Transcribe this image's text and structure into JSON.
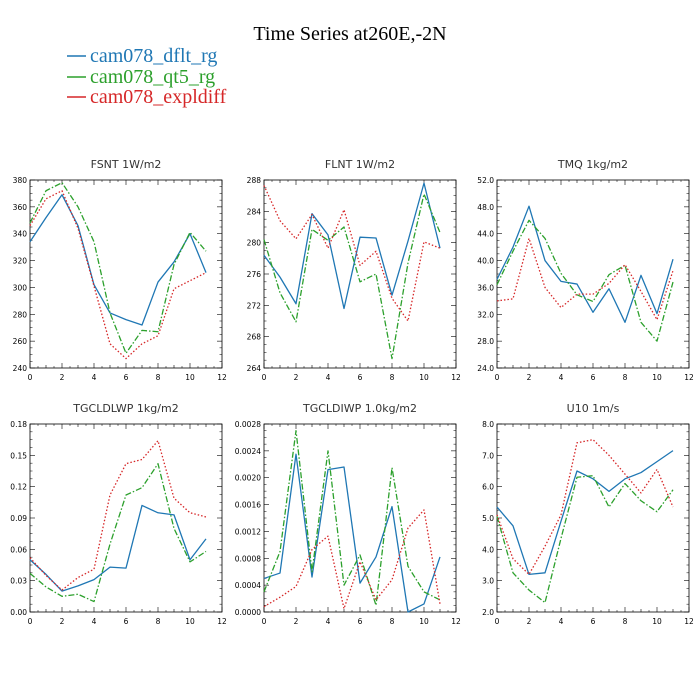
{
  "title": "Time Series at260E,-2N",
  "legend": [
    {
      "label": "cam078_dflt_rg",
      "color": "#1f77b4",
      "dash": "solid"
    },
    {
      "label": "cam078_qt5_rg",
      "color": "#2ca02c",
      "dash": "dashdot"
    },
    {
      "label": "cam078_expldiff",
      "color": "#d62728",
      "dash": "dot"
    }
  ],
  "chart_data": [
    {
      "type": "line",
      "title": "FSNT   1W/m2",
      "x": [
        0,
        1,
        2,
        3,
        4,
        5,
        6,
        7,
        8,
        9,
        10,
        11
      ],
      "xlim": [
        0,
        12
      ],
      "xticks": [
        0,
        2,
        4,
        6,
        8,
        10,
        12
      ],
      "ylim": [
        240,
        380
      ],
      "yticks": [
        "240",
        "260",
        "280",
        "300",
        "320",
        "340",
        "360",
        "380"
      ],
      "series": [
        {
          "name": "cam078_dflt_rg",
          "values": [
            334,
            352,
            369,
            346,
            302,
            281,
            276,
            272,
            304,
            319,
            340,
            311
          ]
        },
        {
          "name": "cam078_qt5_rg",
          "values": [
            348,
            372,
            378,
            360,
            334,
            281,
            251,
            268,
            267,
            317,
            341,
            327
          ]
        },
        {
          "name": "cam078_expldiff",
          "values": [
            346,
            366,
            372,
            344,
            301,
            258,
            247,
            258,
            264,
            299,
            305,
            311
          ]
        }
      ]
    },
    {
      "type": "line",
      "title": "FLNT   1W/m2",
      "x": [
        0,
        1,
        2,
        3,
        4,
        5,
        6,
        7,
        8,
        9,
        10,
        11
      ],
      "xlim": [
        0,
        12
      ],
      "xticks": [
        0,
        2,
        4,
        6,
        8,
        10,
        12
      ],
      "ylim": [
        264,
        288
      ],
      "yticks": [
        "264",
        "268",
        "272",
        "276",
        "280",
        "284",
        "288"
      ],
      "series": [
        {
          "name": "cam078_dflt_rg",
          "values": [
            278.4,
            275.6,
            272.2,
            283.7,
            281.0,
            271.6,
            280.7,
            280.6,
            273.3,
            280.2,
            287.6,
            279.3
          ]
        },
        {
          "name": "cam078_qt5_rg",
          "values": [
            280.4,
            273.6,
            269.9,
            281.7,
            280.3,
            282.0,
            275.0,
            276.0,
            265.2,
            277.4,
            286.2,
            281.3
          ]
        },
        {
          "name": "cam078_expldiff",
          "values": [
            287.3,
            282.8,
            280.5,
            283.6,
            279.3,
            284.2,
            277.1,
            278.9,
            272.9,
            270.0,
            280.1,
            279.3
          ]
        }
      ]
    },
    {
      "type": "line",
      "title": "TMQ   1kg/m2",
      "x": [
        0,
        1,
        2,
        3,
        4,
        5,
        6,
        7,
        8,
        9,
        10,
        11
      ],
      "xlim": [
        0,
        12
      ],
      "xticks": [
        0,
        2,
        4,
        6,
        8,
        10,
        12
      ],
      "ylim": [
        24,
        52
      ],
      "yticks": [
        "24.0",
        "28.0",
        "32.0",
        "36.0",
        "40.0",
        "44.0",
        "48.0",
        "52.0"
      ],
      "series": [
        {
          "name": "cam078_dflt_rg",
          "values": [
            37.2,
            42.0,
            48.1,
            40.0,
            36.9,
            36.5,
            32.3,
            35.8,
            30.8,
            37.8,
            32.1,
            40.2
          ]
        },
        {
          "name": "cam078_qt5_rg",
          "values": [
            36.4,
            41.4,
            46.0,
            43.3,
            38.1,
            34.9,
            33.9,
            37.9,
            39.3,
            30.8,
            28.0,
            36.8
          ]
        },
        {
          "name": "cam078_expldiff",
          "values": [
            34.0,
            34.3,
            43.3,
            36.0,
            33.0,
            35.0,
            35.0,
            36.6,
            39.4,
            35.4,
            31.2,
            38.5
          ]
        }
      ]
    },
    {
      "type": "line",
      "title": "TGCLDLWP   1kg/m2",
      "x": [
        0,
        1,
        2,
        3,
        4,
        5,
        6,
        7,
        8,
        9,
        10,
        11
      ],
      "xlim": [
        0,
        12
      ],
      "xticks": [
        0,
        2,
        4,
        6,
        8,
        10,
        12
      ],
      "ylim": [
        0,
        0.18
      ],
      "yticks": [
        "0.00",
        "0.03",
        "0.06",
        "0.09",
        "0.12",
        "0.15",
        "0.18"
      ],
      "series": [
        {
          "name": "cam078_dflt_rg",
          "values": [
            0.05,
            0.036,
            0.02,
            0.025,
            0.031,
            0.043,
            0.042,
            0.102,
            0.095,
            0.093,
            0.05,
            0.07
          ]
        },
        {
          "name": "cam078_qt5_rg",
          "values": [
            0.037,
            0.024,
            0.015,
            0.017,
            0.01,
            0.065,
            0.112,
            0.119,
            0.142,
            0.08,
            0.048,
            0.058
          ]
        },
        {
          "name": "cam078_expldiff",
          "values": [
            0.052,
            0.035,
            0.021,
            0.033,
            0.041,
            0.112,
            0.142,
            0.146,
            0.164,
            0.109,
            0.095,
            0.091
          ]
        }
      ]
    },
    {
      "type": "line",
      "title": "TGCLDIWP   1.0kg/m2",
      "x": [
        0,
        1,
        2,
        3,
        4,
        5,
        6,
        7,
        8,
        9,
        10,
        11
      ],
      "xlim": [
        0,
        12
      ],
      "xticks": [
        0,
        2,
        4,
        6,
        8,
        10,
        12
      ],
      "ylim": [
        0,
        0.0028
      ],
      "yticks": [
        "0.0000",
        "0.0004",
        "0.0008",
        "0.0012",
        "0.0016",
        "0.0020",
        "0.0024",
        "0.0028"
      ],
      "series": [
        {
          "name": "cam078_dflt_rg",
          "values": [
            0.0005,
            0.00058,
            0.00235,
            0.00052,
            0.00212,
            0.00216,
            0.00043,
            0.00082,
            0.00157,
            0.0,
            0.00012,
            0.00082
          ]
        },
        {
          "name": "cam078_qt5_rg",
          "values": [
            0.0003,
            0.0009,
            0.0027,
            0.0006,
            0.0024,
            0.0004,
            0.00085,
            0.0001,
            0.00215,
            0.00068,
            0.0003,
            0.00018
          ]
        },
        {
          "name": "cam078_expldiff",
          "values": [
            8e-05,
            0.00022,
            0.00038,
            0.00093,
            0.00113,
            5e-05,
            0.00075,
            0.00018,
            0.00048,
            0.00125,
            0.00152,
            0.00012
          ]
        }
      ]
    },
    {
      "type": "line",
      "title": "U10   1m/s",
      "x": [
        0,
        1,
        2,
        3,
        4,
        5,
        6,
        7,
        8,
        9,
        10,
        11
      ],
      "xlim": [
        0,
        12
      ],
      "xticks": [
        0,
        2,
        4,
        6,
        8,
        10,
        12
      ],
      "ylim": [
        2,
        8
      ],
      "yticks": [
        "2.0",
        "3.0",
        "4.0",
        "5.0",
        "6.0",
        "7.0",
        "8.0"
      ],
      "series": [
        {
          "name": "cam078_dflt_rg",
          "values": [
            5.35,
            4.75,
            3.2,
            3.25,
            4.9,
            6.5,
            6.25,
            5.85,
            6.25,
            6.45,
            6.8,
            7.15
          ]
        },
        {
          "name": "cam078_qt5_rg",
          "values": [
            5.05,
            3.25,
            2.7,
            2.3,
            4.35,
            6.3,
            6.35,
            5.35,
            6.1,
            5.55,
            5.2,
            5.9
          ]
        },
        {
          "name": "cam078_expldiff",
          "values": [
            5.1,
            3.7,
            3.2,
            4.1,
            5.1,
            7.4,
            7.5,
            7.0,
            6.4,
            5.8,
            6.55,
            5.35
          ]
        }
      ]
    }
  ]
}
